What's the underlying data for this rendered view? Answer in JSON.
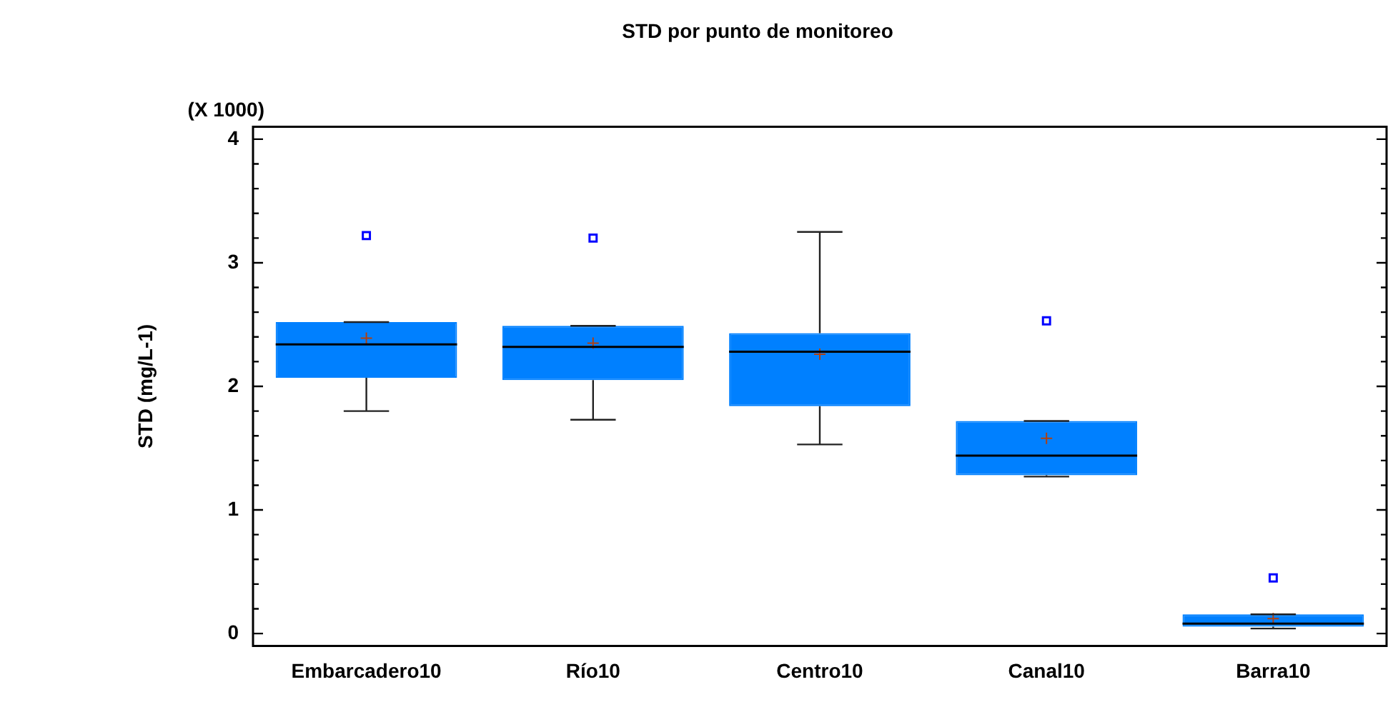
{
  "chart_data": {
    "type": "box",
    "title": "STD por punto de monitoreo",
    "ylabel": "STD (mg/L-1)",
    "annotations": [
      "(X 1000)"
    ],
    "categories": [
      "Embarcadero10",
      "Río10",
      "Centro10",
      "Canal10",
      "Barra10"
    ],
    "color": "#0080ff",
    "boxes": [
      {
        "low": 1.8,
        "q1": 2.07,
        "median": 2.34,
        "q3": 2.52,
        "high": 2.52,
        "mean": 2.39,
        "outliers": [
          3.22
        ]
      },
      {
        "low": 1.73,
        "q1": 2.05,
        "median": 2.32,
        "q3": 2.49,
        "high": 2.49,
        "mean": 2.35,
        "outliers": [
          3.2
        ]
      },
      {
        "low": 1.53,
        "q1": 1.84,
        "median": 2.28,
        "q3": 2.43,
        "high": 3.25,
        "mean": 2.26
      },
      {
        "low": 1.27,
        "q1": 1.28,
        "median": 1.44,
        "q3": 1.72,
        "high": 1.72,
        "mean": 1.58,
        "outliers": [
          2.53
        ]
      },
      {
        "low": 0.04,
        "q1": 0.055,
        "median": 0.08,
        "q3": 0.155,
        "high": 0.155,
        "mean": 0.12,
        "outliers": [
          0.45
        ]
      }
    ],
    "ylim": [
      -0.1,
      4.1
    ],
    "yticks": [
      0,
      {
        "value": 0.2,
        "label": null
      },
      {
        "value": 0.4,
        "label": null
      },
      {
        "value": 0.6,
        "label": null
      },
      {
        "value": 0.8,
        "label": null
      },
      1,
      {
        "value": 1.2,
        "label": null
      },
      {
        "value": 1.4,
        "label": null
      },
      {
        "value": 1.6,
        "label": null
      },
      {
        "value": 1.8,
        "label": null
      },
      2,
      {
        "value": 2.2,
        "label": null
      },
      {
        "value": 2.4,
        "label": null
      },
      {
        "value": 2.6,
        "label": null
      },
      {
        "value": 2.8,
        "label": null
      },
      3,
      {
        "value": 3.2,
        "label": null
      },
      {
        "value": 3.4,
        "label": null
      },
      {
        "value": 3.6,
        "label": null
      },
      {
        "value": 3.8,
        "label": null
      },
      4
    ],
    "grid": false,
    "legend": false,
    "marker": "square"
  }
}
